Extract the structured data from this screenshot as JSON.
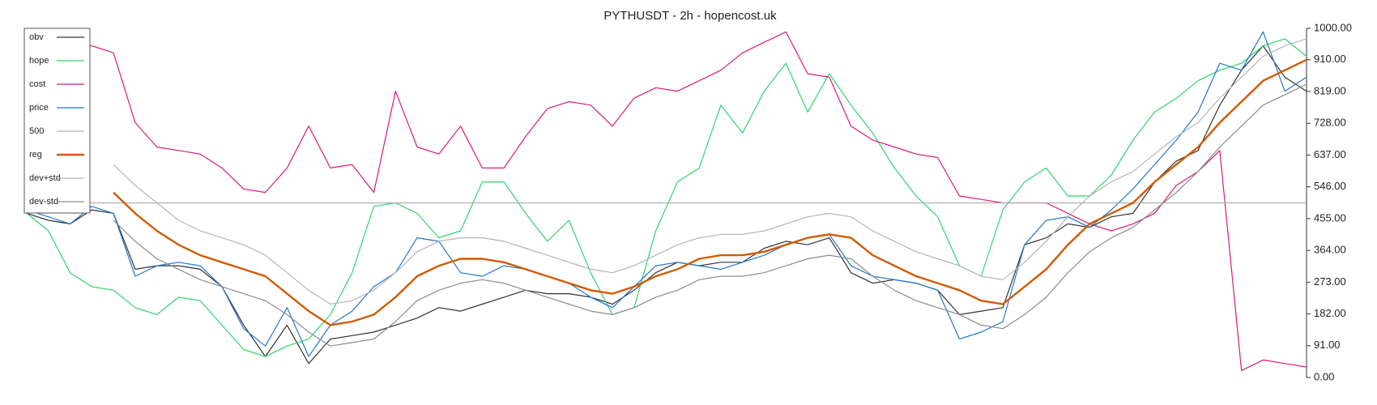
{
  "chart_data": {
    "type": "line",
    "title": "PYTHUSDT - 2h - hopencost.uk",
    "categories": [
      null,
      null,
      null,
      null,
      null,
      null,
      null,
      null,
      null,
      null,
      null,
      null,
      null,
      null,
      null,
      null,
      null,
      null,
      null,
      null,
      null,
      null,
      null,
      null,
      null,
      null,
      null,
      null,
      null,
      null,
      null,
      null,
      null,
      null,
      null,
      null,
      null,
      null,
      null,
      null,
      null,
      null,
      null,
      null,
      null,
      null,
      null,
      null,
      null,
      null,
      null,
      null,
      null,
      null,
      null,
      null,
      null,
      null,
      null,
      null
    ],
    "ylim": [
      0,
      1000
    ],
    "yticks": [
      {
        "value": 0,
        "label": "0.00"
      },
      {
        "value": 91,
        "label": "91.00"
      },
      {
        "value": 182,
        "label": "182.00"
      },
      {
        "value": 273,
        "label": "273.00"
      },
      {
        "value": 364,
        "label": "364.00"
      },
      {
        "value": 455,
        "label": "455.00"
      },
      {
        "value": 546,
        "label": "546.00"
      },
      {
        "value": 637,
        "label": "637.00"
      },
      {
        "value": 728,
        "label": "728.00"
      },
      {
        "value": 819,
        "label": "819.00"
      },
      {
        "value": 910,
        "label": "910.00"
      },
      {
        "value": 1000,
        "label": "1000.00"
      }
    ],
    "legend": "upper left",
    "series": [
      {
        "name": "obv",
        "color": "#333333",
        "values": [
          470,
          450,
          440,
          480,
          470,
          310,
          320,
          320,
          310,
          260,
          150,
          60,
          150,
          40,
          110,
          120,
          130,
          150,
          170,
          200,
          190,
          210,
          230,
          250,
          240,
          240,
          230,
          210,
          250,
          300,
          330,
          320,
          330,
          330,
          370,
          390,
          380,
          400,
          300,
          270,
          280,
          270,
          250,
          180,
          190,
          200,
          380,
          400,
          440,
          430,
          460,
          470,
          560,
          620,
          650,
          780,
          880,
          950,
          860,
          820
        ]
      },
      {
        "name": "hope",
        "color": "#2fd46a",
        "values": [
          470,
          420,
          300,
          260,
          250,
          200,
          180,
          230,
          220,
          150,
          80,
          60,
          90,
          110,
          180,
          300,
          490,
          500,
          470,
          400,
          420,
          560,
          560,
          470,
          390,
          450,
          300,
          180,
          200,
          420,
          560,
          600,
          780,
          700,
          820,
          900,
          760,
          870,
          780,
          700,
          600,
          520,
          460,
          320,
          290,
          480,
          560,
          600,
          520,
          520,
          580,
          680,
          760,
          800,
          850,
          880,
          900,
          950,
          970,
          920
        ]
      },
      {
        "name": "cost",
        "color": "#d81b78",
        "values": [
          960,
          960,
          960,
          950,
          930,
          730,
          660,
          650,
          640,
          600,
          540,
          530,
          600,
          720,
          600,
          610,
          530,
          820,
          660,
          640,
          720,
          600,
          600,
          690,
          770,
          790,
          780,
          720,
          800,
          830,
          820,
          850,
          880,
          930,
          960,
          990,
          870,
          860,
          720,
          680,
          660,
          640,
          630,
          520,
          510,
          500,
          500,
          500,
          470,
          440,
          420,
          440,
          470,
          550,
          590,
          650,
          20,
          50,
          40,
          30
        ]
      },
      {
        "name": "price",
        "color": "#1f78d1",
        "values": [
          480,
          460,
          440,
          490,
          470,
          290,
          320,
          330,
          320,
          260,
          140,
          90,
          200,
          60,
          150,
          190,
          260,
          300,
          400,
          390,
          300,
          290,
          320,
          310,
          290,
          270,
          230,
          200,
          260,
          320,
          330,
          320,
          310,
          330,
          350,
          380,
          400,
          410,
          320,
          290,
          280,
          270,
          250,
          110,
          130,
          160,
          380,
          450,
          460,
          430,
          480,
          540,
          610,
          680,
          760,
          900,
          880,
          990,
          820,
          860
        ]
      },
      {
        "name": "500",
        "color": "#b0b0b0",
        "values": [
          500,
          500,
          500,
          500,
          500,
          500,
          500,
          500,
          500,
          500,
          500,
          500,
          500,
          500,
          500,
          500,
          500,
          500,
          500,
          500,
          500,
          500,
          500,
          500,
          500,
          500,
          500,
          500,
          500,
          500,
          500,
          500,
          500,
          500,
          500,
          500,
          500,
          500,
          500,
          500,
          500,
          500,
          500,
          500,
          500,
          500,
          500,
          500,
          500,
          500,
          500,
          500,
          500,
          500,
          500,
          500,
          500,
          500,
          500,
          500
        ]
      },
      {
        "name": "reg",
        "color": "#d35a00",
        "values": [
          null,
          null,
          null,
          null,
          530,
          470,
          420,
          380,
          350,
          330,
          310,
          290,
          240,
          190,
          150,
          160,
          180,
          230,
          290,
          320,
          340,
          340,
          330,
          310,
          290,
          270,
          250,
          240,
          260,
          290,
          310,
          340,
          350,
          350,
          360,
          380,
          400,
          410,
          400,
          350,
          320,
          290,
          270,
          250,
          220,
          210,
          260,
          310,
          380,
          440,
          470,
          500,
          560,
          610,
          660,
          730,
          790,
          850,
          880,
          910
        ]
      },
      {
        "name": "dev+std",
        "color": "#b5b5b5",
        "values": [
          null,
          null,
          null,
          null,
          610,
          550,
          500,
          450,
          420,
          400,
          380,
          350,
          300,
          250,
          210,
          220,
          250,
          300,
          360,
          390,
          400,
          400,
          390,
          370,
          350,
          330,
          310,
          300,
          320,
          350,
          380,
          400,
          410,
          410,
          420,
          440,
          460,
          470,
          460,
          420,
          390,
          360,
          340,
          320,
          290,
          280,
          330,
          390,
          460,
          520,
          560,
          590,
          640,
          690,
          730,
          800,
          860,
          920,
          950,
          970
        ]
      },
      {
        "name": "dev-std",
        "color": "#8c8c8c",
        "values": [
          null,
          null,
          null,
          null,
          450,
          390,
          340,
          310,
          280,
          260,
          240,
          220,
          180,
          130,
          90,
          100,
          110,
          160,
          220,
          250,
          270,
          280,
          270,
          250,
          230,
          210,
          190,
          180,
          200,
          230,
          250,
          280,
          290,
          290,
          300,
          320,
          340,
          350,
          340,
          290,
          250,
          220,
          200,
          180,
          150,
          140,
          180,
          230,
          300,
          360,
          400,
          430,
          480,
          530,
          590,
          660,
          720,
          780,
          810,
          840
        ]
      }
    ]
  }
}
